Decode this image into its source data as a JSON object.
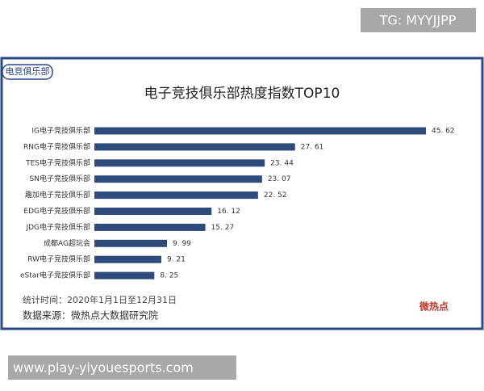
{
  "header": {
    "tag": "TG: MYYJJPP"
  },
  "chart_data": {
    "type": "bar",
    "orientation": "horizontal",
    "badge": "电竞俱乐部",
    "title": "电子竞技俱乐部热度指数TOP10",
    "categories": [
      "IG电子竞技俱乐部",
      "RNG电子竞技俱乐部",
      "TES电子竞技俱乐部",
      "SN电子竞技俱乐部",
      "趣加电子竞技俱乐部",
      "EDG电子竞技俱乐部",
      "JDG电子竞技俱乐部",
      "成都AG超玩会",
      "RW电子竞技俱乐部",
      "eStar电子竞技俱乐部"
    ],
    "values": [
      45.62,
      27.61,
      23.44,
      23.07,
      22.52,
      16.12,
      15.27,
      9.99,
      9.21,
      8.25
    ],
    "value_labels": [
      "45. 62",
      "27. 61",
      "23. 44",
      "23. 07",
      "22. 52",
      "16. 12",
      "15. 27",
      "9. 99",
      "9. 21",
      "8. 25"
    ],
    "color": "#2e4b7c",
    "period": "统计时间：2020年1月1日至12月31日",
    "source": "数据来源：微热点大数据研究院",
    "watermark": "微热点"
  },
  "footer": {
    "url": "www.play-yiyouesports.com"
  }
}
